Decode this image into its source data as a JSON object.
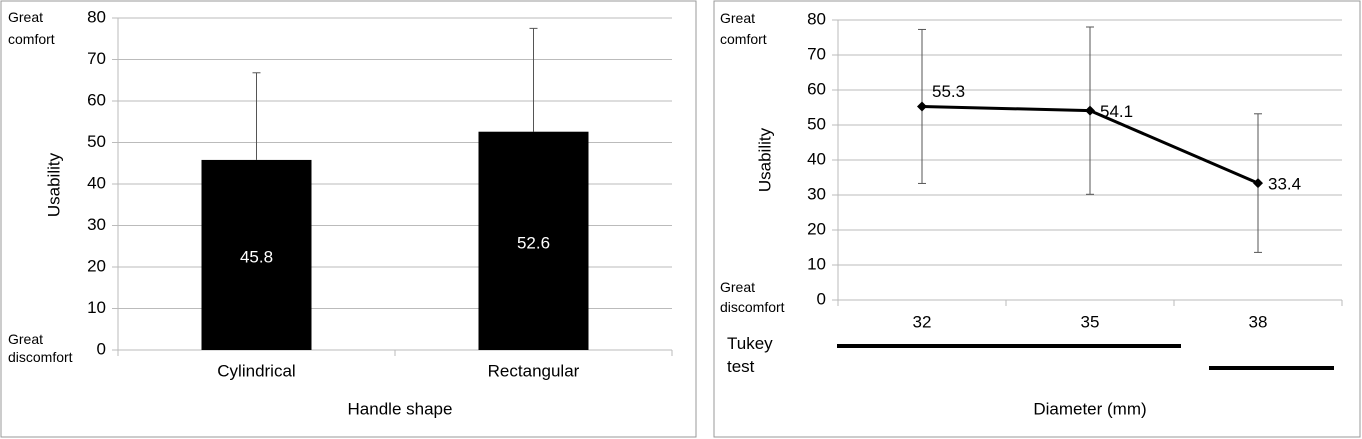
{
  "chart_data": [
    {
      "type": "bar",
      "categories": [
        "Cylindrical",
        "Rectangular"
      ],
      "values": [
        45.8,
        52.6
      ],
      "errors": [
        21.0,
        24.9
      ],
      "color": "#000000",
      "ylim": [
        0,
        80
      ],
      "yticks": [
        0,
        10,
        20,
        30,
        40,
        50,
        60,
        70,
        80
      ],
      "grid": true,
      "y_label": "Usability",
      "x_label": "Handle shape",
      "top_annotation": "Great comfort",
      "bottom_annotation": "Great discomfort"
    },
    {
      "type": "line",
      "categories": [
        "32",
        "35",
        "38"
      ],
      "values": [
        55.3,
        54.1,
        33.4
      ],
      "errors": [
        22.0,
        23.9,
        19.8
      ],
      "color": "#000000",
      "ylim": [
        0,
        80
      ],
      "yticks": [
        0,
        10,
        20,
        30,
        40,
        50,
        60,
        70,
        80
      ],
      "grid": true,
      "y_label": "Usability",
      "x_label": "Diameter (mm)",
      "top_annotation": "Great comfort",
      "bottom_annotation": "Great discomfort",
      "tukey_label": "Tukey test"
    }
  ]
}
